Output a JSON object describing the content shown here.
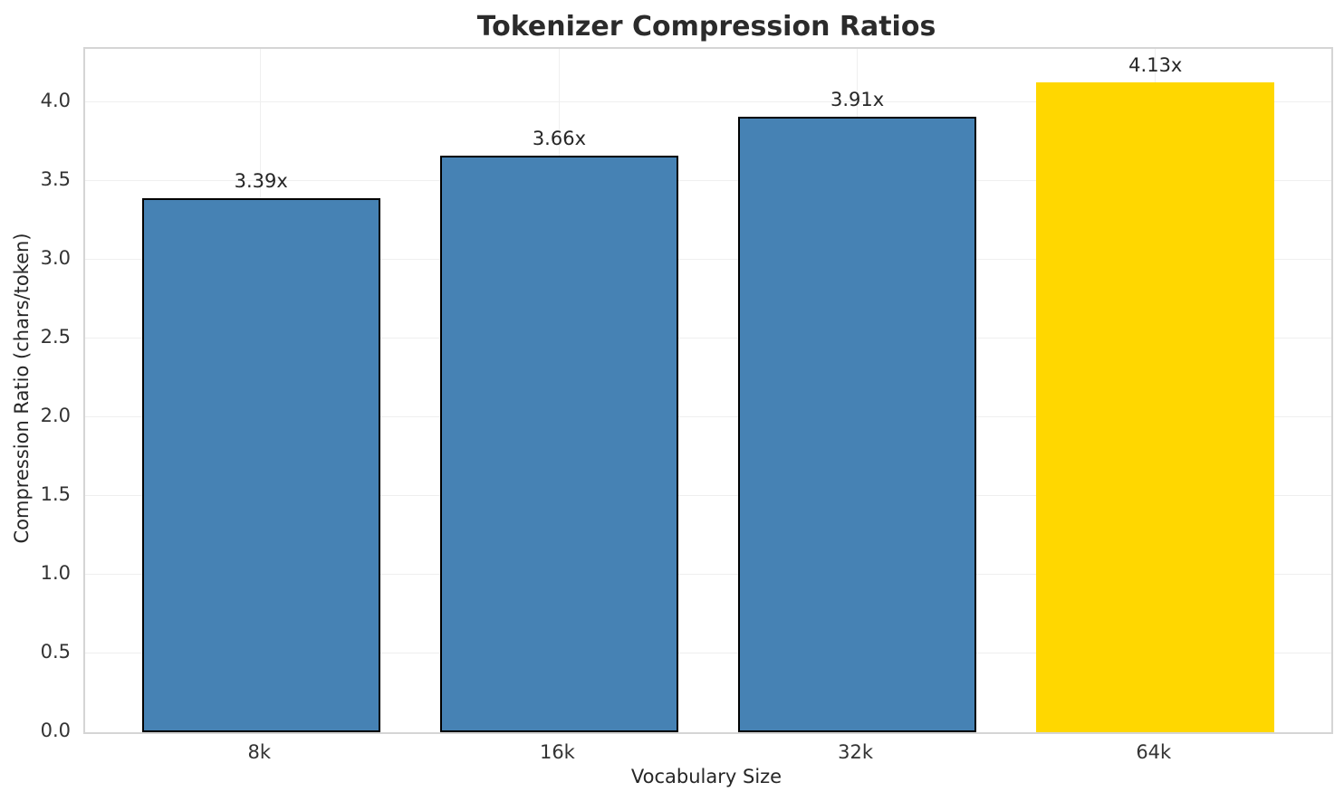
{
  "chart_data": {
    "type": "bar",
    "title": "Tokenizer Compression Ratios",
    "xlabel": "Vocabulary Size",
    "ylabel": "Compression Ratio (chars/token)",
    "categories": [
      "8k",
      "16k",
      "32k",
      "64k"
    ],
    "values": [
      3.39,
      3.66,
      3.91,
      4.13
    ],
    "bar_labels": [
      "3.39x",
      "3.66x",
      "3.91x",
      "4.13x"
    ],
    "bar_colors": [
      "#4682B4",
      "#4682B4",
      "#4682B4",
      "#FFD700"
    ],
    "bar_edge_colors": [
      "#000000",
      "#000000",
      "#000000",
      "none"
    ],
    "bar_width": 0.8,
    "xlim": [
      -0.59,
      3.59
    ],
    "ylim": [
      0,
      4.34
    ],
    "yticks": [
      0,
      0.5,
      1,
      1.5,
      2,
      2.5,
      3,
      3.5,
      4
    ],
    "ytick_labels": [
      "0.0",
      "0.5",
      "1.0",
      "1.5",
      "2.0",
      "2.5",
      "3.0",
      "3.5",
      "4.0"
    ],
    "grid": true,
    "legend": "none",
    "accent_colors": {
      "bar_fill": "#4682B4",
      "highlight_fill": "#FFD700",
      "grid": "#efefef",
      "spine": "#d5d5d5"
    }
  }
}
